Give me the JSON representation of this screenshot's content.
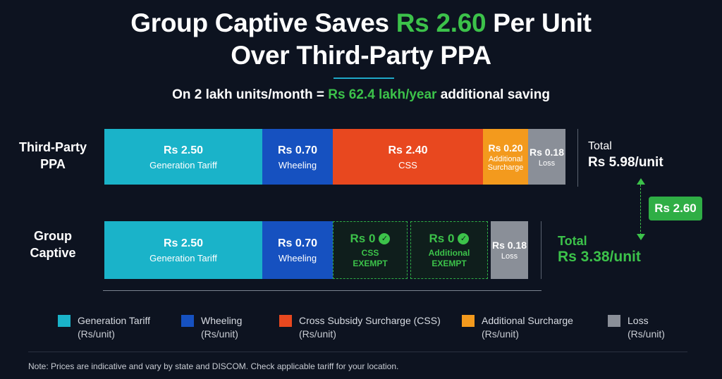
{
  "title": {
    "line1_pre": "Group Captive Saves ",
    "line1_highlight": "Rs 2.60",
    "line1_post": " Per Unit",
    "line2": "Over Third-Party PPA"
  },
  "subtitle": {
    "pre": "On 2 lakh units/month = ",
    "highlight": "Rs 62.4 lakh/year",
    "post": " additional saving"
  },
  "colors": {
    "generation": "#1ab3c9",
    "wheeling": "#1651c0",
    "css": "#e8481f",
    "additional": "#f39a1d",
    "loss": "#8a8f98",
    "accent_green": "#3cc24a"
  },
  "chart_data": {
    "type": "bar",
    "orientation": "horizontal-stacked",
    "unit": "Rs/unit",
    "categories": [
      "Third-Party PPA",
      "Group Captive"
    ],
    "series": [
      {
        "name": "Generation Tariff",
        "values": [
          2.5,
          2.5
        ]
      },
      {
        "name": "Wheeling",
        "values": [
          0.7,
          0.7
        ]
      },
      {
        "name": "Cross Subsidy Surcharge (CSS)",
        "values": [
          2.4,
          0
        ]
      },
      {
        "name": "Additional Surcharge",
        "values": [
          0.2,
          0
        ]
      },
      {
        "name": "Loss",
        "values": [
          0.18,
          0.18
        ]
      }
    ],
    "totals": [
      5.98,
      3.38
    ],
    "difference": 2.6,
    "legend_position": "bottom"
  },
  "rows": [
    {
      "label_lines": [
        "Third-Party",
        "PPA"
      ],
      "total_label": "Total",
      "total_value": "Rs 5.98/unit",
      "segments": [
        {
          "key": "generation",
          "value": 2.5,
          "val_text": "Rs 2.50",
          "lbl_text": "Generation Tariff",
          "exempt": false
        },
        {
          "key": "wheeling",
          "value": 0.7,
          "val_text": "Rs 0.70",
          "lbl_text": "Wheeling",
          "exempt": false
        },
        {
          "key": "css",
          "value": 2.4,
          "val_text": "Rs 2.40",
          "lbl_text": "CSS",
          "exempt": false
        },
        {
          "key": "additional",
          "value": 0.2,
          "val_text": "Rs 0.20",
          "lbl_text": "Additional Surcharge",
          "exempt": false
        },
        {
          "key": "loss",
          "value": 0.18,
          "val_text": "Rs 0.18",
          "lbl_text": "Loss",
          "exempt": false
        }
      ]
    },
    {
      "label_lines": [
        "Group",
        "Captive"
      ],
      "total_label": "Total",
      "total_value": "Rs 3.38/unit",
      "segments": [
        {
          "key": "generation",
          "value": 2.5,
          "val_text": "Rs 2.50",
          "lbl_text": "Generation Tariff",
          "exempt": false
        },
        {
          "key": "wheeling",
          "value": 0.7,
          "val_text": "Rs 0.70",
          "lbl_text": "Wheeling",
          "exempt": false
        },
        {
          "key": "css",
          "value": 0,
          "val_text": "Rs 0",
          "lbl_text": "CSS EXEMPT",
          "exempt": true
        },
        {
          "key": "additional",
          "value": 0,
          "val_text": "Rs 0",
          "lbl_text": "Additional EXEMPT",
          "exempt": true
        },
        {
          "key": "loss",
          "value": 0.18,
          "val_text": "Rs 0.18",
          "lbl_text": "Loss",
          "exempt": false
        }
      ]
    }
  ],
  "difference_badge": "Rs 2.60",
  "legend": [
    {
      "key": "generation",
      "name": "Generation Tariff",
      "unit": "(Rs/unit)"
    },
    {
      "key": "wheeling",
      "name": "Wheeling",
      "unit": "(Rs/unit)"
    },
    {
      "key": "css",
      "name": "Cross Subsidy Surcharge (CSS)",
      "unit": "(Rs/unit)"
    },
    {
      "key": "additional",
      "name": "Additional Surcharge",
      "unit": "(Rs/unit)"
    },
    {
      "key": "loss",
      "name": "Loss",
      "unit": "(Rs/unit)"
    }
  ],
  "note": "Note: Prices are indicative and vary by state and DISCOM. Check applicable tariff for your location."
}
